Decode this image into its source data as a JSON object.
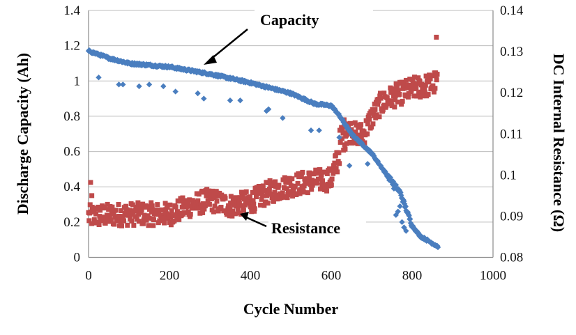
{
  "chart_data": {
    "type": "scatter",
    "title": "",
    "xlabel": "Cycle Number",
    "ylabel_left": "Discharge Capacity (Ah)",
    "ylabel_right": "DC Internal Resistance (Ω)",
    "xlim": [
      0,
      1000
    ],
    "ylim_left": [
      0,
      1.4
    ],
    "ylim_right": [
      0.08,
      0.14
    ],
    "x_ticks": [
      "0",
      "200",
      "400",
      "600",
      "800",
      "1000"
    ],
    "y_left_ticks": [
      "0",
      "0.2",
      "0.4",
      "0.6",
      "0.8",
      "1",
      "1.2",
      "1.4"
    ],
    "y_right_ticks": [
      "0.08",
      "0.09",
      "0.1",
      "0.11",
      "0.12",
      "0.13",
      "0.14"
    ],
    "grid": true,
    "annotations": [
      {
        "text": "Capacity",
        "points_to_x": 285,
        "points_to_y": 1.1,
        "series": "capacity"
      },
      {
        "text": "Resistance",
        "points_to_x": 360,
        "points_to_y": 0.088,
        "series": "resistance"
      }
    ],
    "series": [
      {
        "name": "Discharge Capacity",
        "axis": "left",
        "color": "#4a7ebf",
        "marker": "diamond",
        "trend": [
          [
            0,
            1.17
          ],
          [
            50,
            1.13
          ],
          [
            100,
            1.1
          ],
          [
            200,
            1.08
          ],
          [
            300,
            1.04
          ],
          [
            400,
            0.99
          ],
          [
            500,
            0.93
          ],
          [
            560,
            0.87
          ],
          [
            600,
            0.86
          ],
          [
            615,
            0.82
          ],
          [
            650,
            0.7
          ],
          [
            700,
            0.59
          ],
          [
            740,
            0.46
          ],
          [
            770,
            0.37
          ],
          [
            800,
            0.18
          ],
          [
            820,
            0.12
          ],
          [
            850,
            0.08
          ],
          [
            865,
            0.06
          ]
        ],
        "outliers": [
          [
            25,
            1.02
          ],
          [
            75,
            0.98
          ],
          [
            85,
            0.98
          ],
          [
            125,
            0.97
          ],
          [
            150,
            0.98
          ],
          [
            185,
            0.97
          ],
          [
            215,
            0.94
          ],
          [
            270,
            0.93
          ],
          [
            285,
            0.9
          ],
          [
            350,
            0.89
          ],
          [
            375,
            0.89
          ],
          [
            440,
            0.83
          ],
          [
            445,
            0.84
          ],
          [
            480,
            0.79
          ],
          [
            550,
            0.72
          ],
          [
            570,
            0.72
          ],
          [
            620,
            0.68
          ],
          [
            645,
            0.52
          ],
          [
            690,
            0.53
          ],
          [
            755,
            0.39
          ],
          [
            760,
            0.24
          ],
          [
            765,
            0.26
          ],
          [
            770,
            0.29
          ],
          [
            775,
            0.2
          ],
          [
            780,
            0.17
          ],
          [
            785,
            0.15
          ]
        ]
      },
      {
        "name": "DC Internal Resistance",
        "axis": "right",
        "color": "#bf4a4a",
        "marker": "square",
        "trend": [
          [
            0,
            0.09
          ],
          [
            100,
            0.0905
          ],
          [
            200,
            0.0905
          ],
          [
            250,
            0.0925
          ],
          [
            300,
            0.094
          ],
          [
            350,
            0.0925
          ],
          [
            400,
            0.0935
          ],
          [
            450,
            0.096
          ],
          [
            500,
            0.0975
          ],
          [
            550,
            0.0985
          ],
          [
            600,
            0.099
          ],
          [
            615,
            0.104
          ],
          [
            625,
            0.109
          ],
          [
            640,
            0.111
          ],
          [
            660,
            0.11
          ],
          [
            680,
            0.11
          ],
          [
            700,
            0.114
          ],
          [
            720,
            0.117
          ],
          [
            750,
            0.119
          ],
          [
            800,
            0.121
          ],
          [
            850,
            0.122
          ],
          [
            862,
            0.123
          ]
        ],
        "outliers": [
          [
            5,
            0.0982
          ],
          [
            8,
            0.095
          ],
          [
            860,
            0.1335
          ],
          [
            862,
            0.1245
          ]
        ]
      }
    ]
  }
}
